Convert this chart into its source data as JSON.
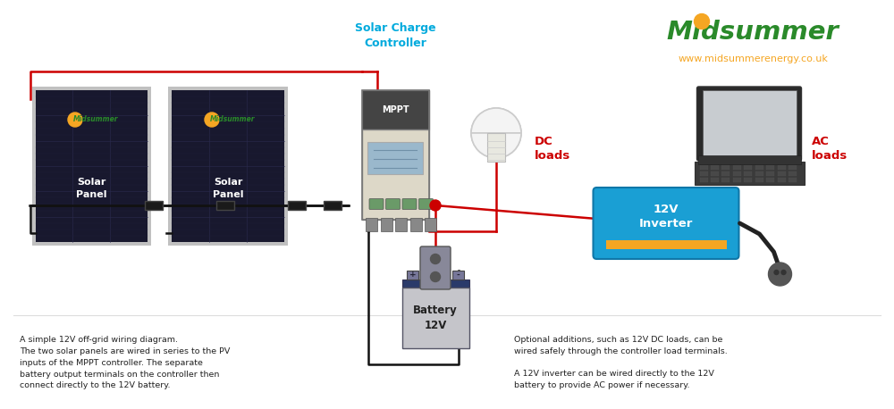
{
  "bg_color": "#f5f5f5",
  "border_color": "#cccccc",
  "brand_color": "#2a8a2a",
  "brand_dot_color": "#f5a623",
  "brand_url": "www.midsummerenergy.co.uk",
  "brand_url_color": "#f5a623",
  "solar_charge_controller_label": "Solar Charge\nController",
  "solar_charge_controller_color": "#00aadd",
  "mppt_label": "MPPT",
  "dc_loads_label": "DC\nloads",
  "dc_loads_color": "#cc0000",
  "ac_loads_label": "AC\nloads",
  "ac_loads_color": "#cc0000",
  "inverter_label": "12V\nInverter",
  "inverter_color": "#1a9fd4",
  "inverter_bar_color": "#f5a623",
  "battery_label": "Battery\n12V",
  "wire_red": "#cc0000",
  "wire_black": "#111111",
  "desc_left": "A simple 12V off-grid wiring diagram.\nThe two solar panels are wired in series to the PV\ninputs of the MPPT controller. The separate\nbattery output terminals on the controller then\nconnect directly to the 12V battery.",
  "desc_right_1": "Optional additions, such as 12V DC loads, can be\nwired safely through the controller load terminals.",
  "desc_right_2": "A 12V inverter can be wired directly to the 12V\nbattery to provide AC power if necessary."
}
